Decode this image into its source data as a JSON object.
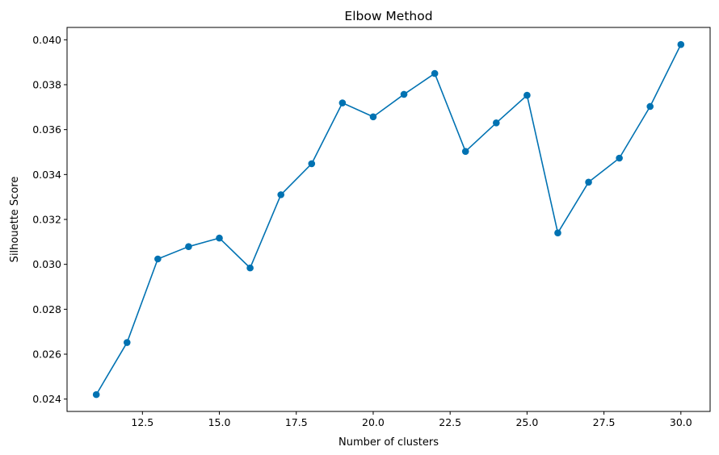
{
  "chart_data": {
    "type": "line",
    "title": "Elbow Method",
    "xlabel": "Number of clusters",
    "ylabel": "Silhouette Score",
    "xlim": [
      10.05,
      30.95
    ],
    "ylim": [
      0.02345,
      0.04055
    ],
    "grid": false,
    "x_ticks": [
      12.5,
      15.0,
      17.5,
      20.0,
      22.5,
      25.0,
      27.5,
      30.0
    ],
    "x_tick_labels": [
      "12.5",
      "15.0",
      "17.5",
      "20.0",
      "22.5",
      "25.0",
      "27.5",
      "30.0"
    ],
    "y_ticks": [
      0.024,
      0.026,
      0.028,
      0.03,
      0.032,
      0.034,
      0.036,
      0.038,
      0.04
    ],
    "y_tick_labels": [
      "0.024",
      "0.026",
      "0.028",
      "0.030",
      "0.032",
      "0.034",
      "0.036",
      "0.038",
      "0.040"
    ],
    "line_color": "#0072b2",
    "series": [
      {
        "x": [
          11,
          12,
          13,
          14,
          15,
          16,
          17,
          18,
          19,
          20,
          21,
          22,
          23,
          24,
          25,
          26,
          27,
          28,
          29,
          30
        ],
        "values": [
          0.0242,
          0.02652,
          0.03024,
          0.03079,
          0.03117,
          0.02984,
          0.0331,
          0.03448,
          0.03719,
          0.03657,
          0.03757,
          0.0385,
          0.03503,
          0.0363,
          0.03753,
          0.0314,
          0.03366,
          0.03473,
          0.03703,
          0.03979
        ]
      }
    ]
  }
}
